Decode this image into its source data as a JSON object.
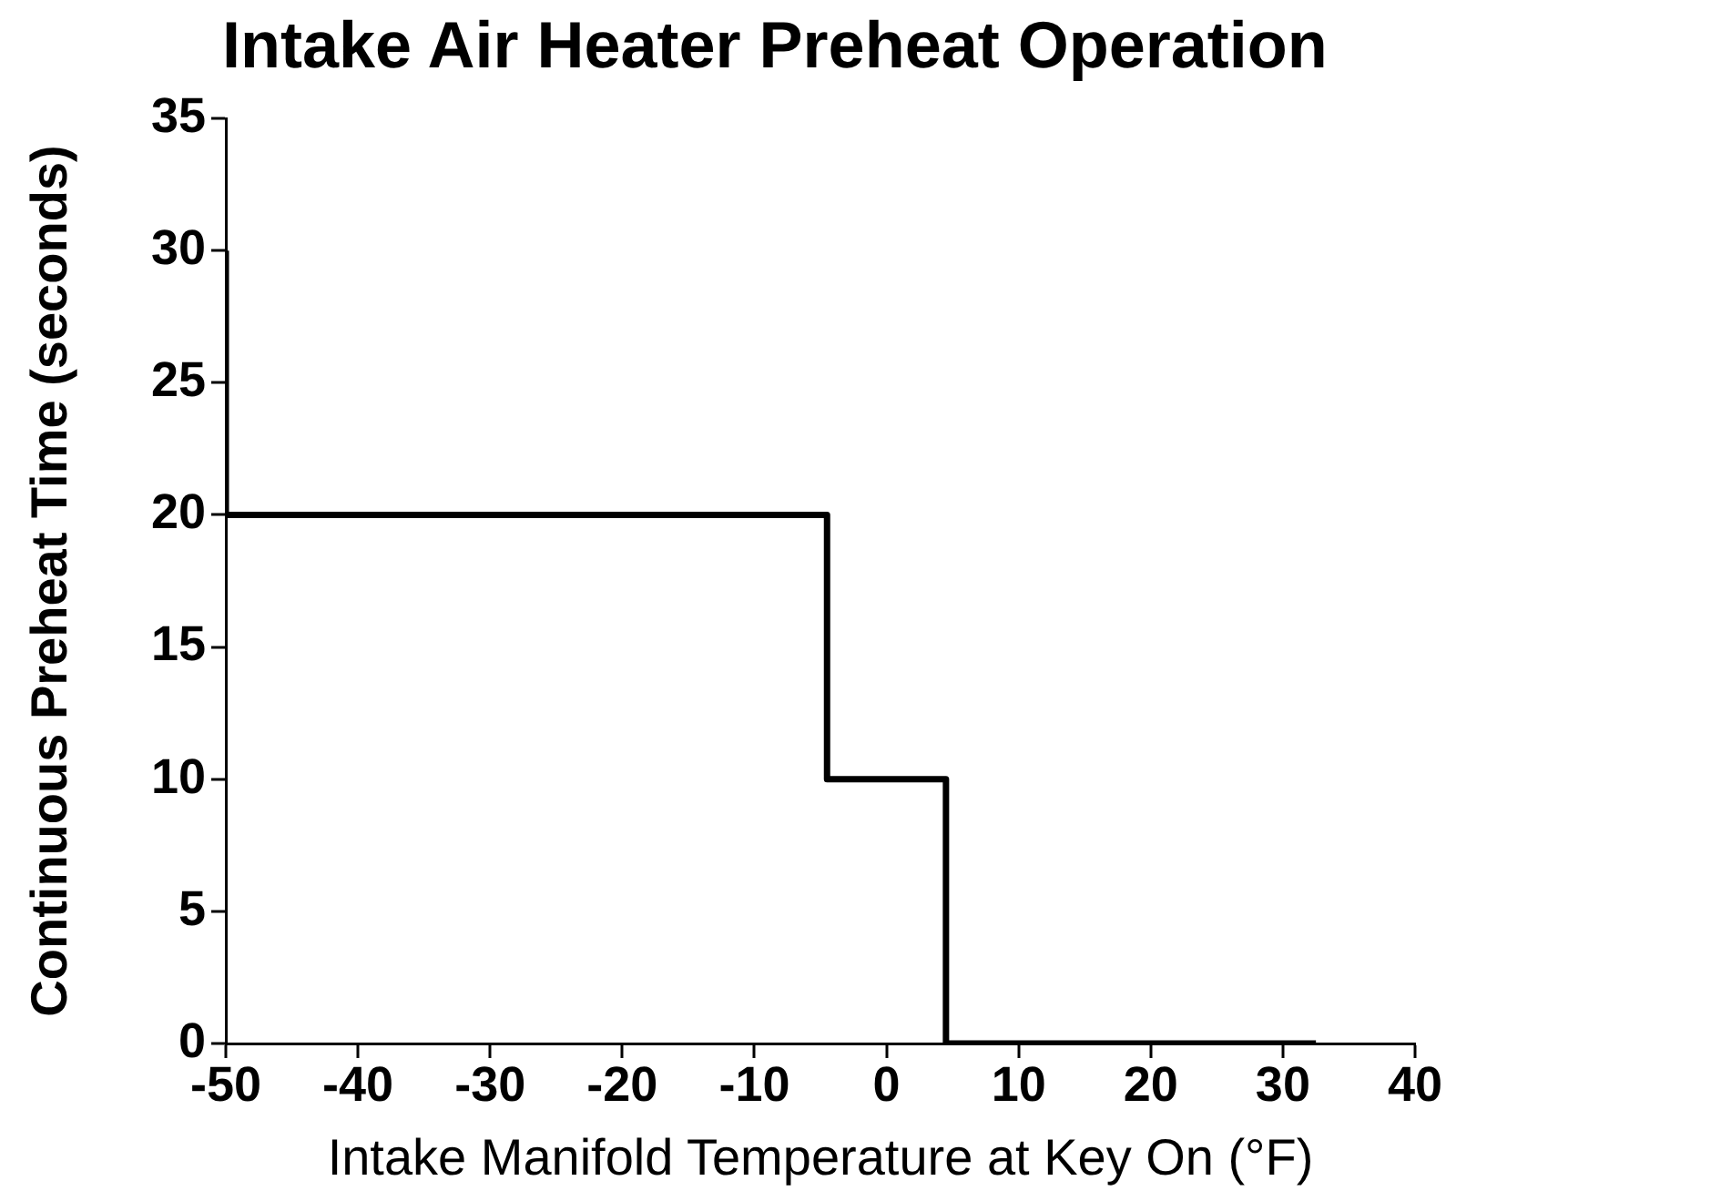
{
  "chart_data": {
    "type": "step",
    "title": "Intake Air Heater Preheat Operation",
    "xlabel": "Intake Manifold Temperature at Key On (°F)",
    "ylabel": "Continuous Preheat Time (seconds)",
    "x": [
      -50,
      -50,
      -4.5,
      4.5,
      32.5
    ],
    "series": [
      {
        "color": "#000000",
        "values": [
          30,
          20,
          10,
          0,
          0
        ]
      }
    ],
    "xlim": [
      -50,
      40
    ],
    "xticks": [
      -50,
      -40,
      -30,
      -20,
      -10,
      0,
      10,
      20,
      30,
      40
    ],
    "ylim": [
      0,
      35
    ],
    "yticks": [
      0,
      5,
      10,
      15,
      20,
      25,
      30,
      35
    ],
    "grid": false,
    "line_style": "solid"
  }
}
